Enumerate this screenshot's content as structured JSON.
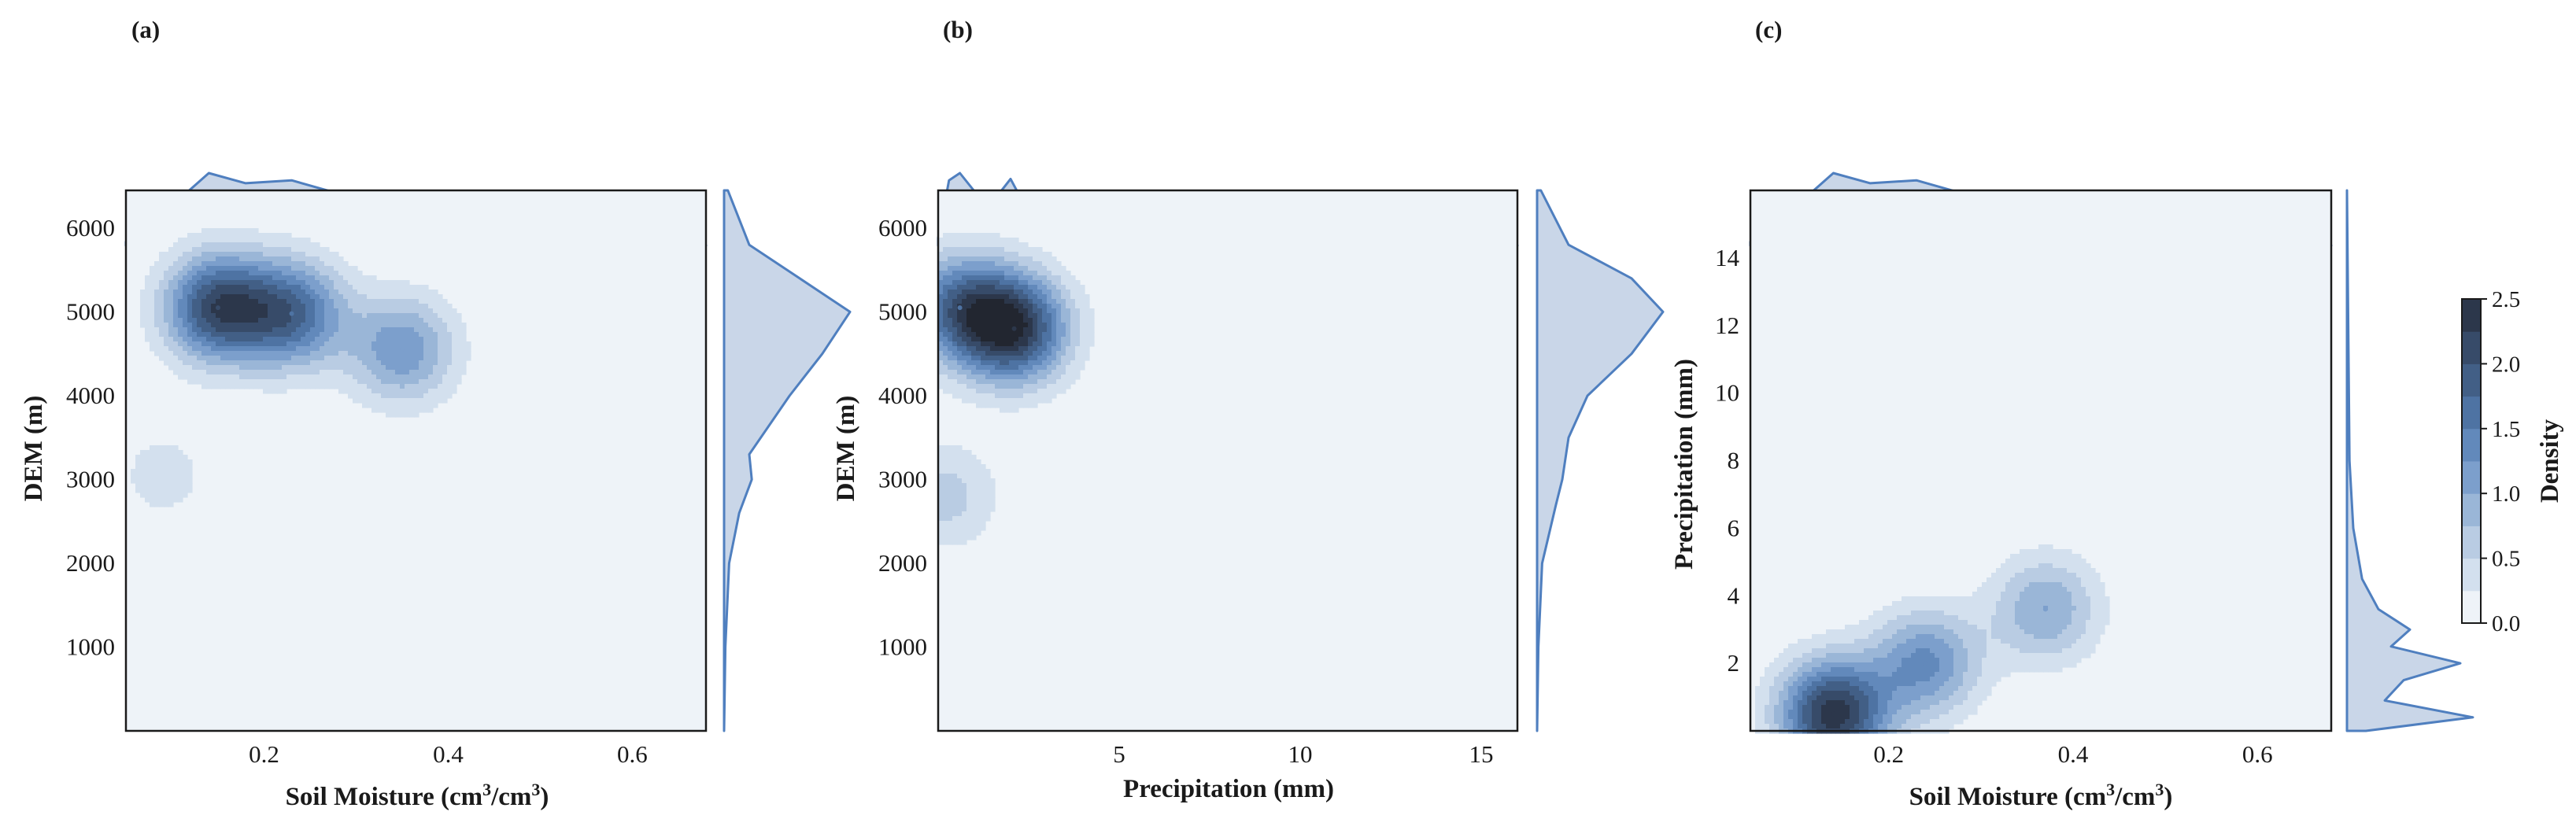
{
  "chart_data": [
    {
      "panel": "(a)",
      "type": "kde-joint",
      "xlabel": "Soil Moisture (cm³/cm³)",
      "ylabel": "DEM (m)",
      "xlim": [
        0.05,
        0.68
      ],
      "ylim": [
        0,
        6450
      ],
      "xticks": [
        0.2,
        0.4,
        0.6
      ],
      "xtick_labels": [
        "0.2",
        "0.4",
        "0.6"
      ],
      "yticks": [
        1000,
        2000,
        3000,
        4000,
        5000,
        6000
      ],
      "ytick_labels": [
        "1000",
        "2000",
        "3000",
        "4000",
        "5000",
        "6000"
      ],
      "density_peaks": [
        {
          "x": 0.15,
          "y": 5050,
          "density": 2.1
        },
        {
          "x": 0.23,
          "y": 4980,
          "density": 1.7
        },
        {
          "x": 0.35,
          "y": 4550,
          "density": 1.2
        },
        {
          "x": 0.09,
          "y": 3050,
          "density": 0.35
        }
      ],
      "top_marginal": {
        "x": [
          0.05,
          0.1,
          0.14,
          0.18,
          0.23,
          0.28,
          0.32,
          0.37,
          0.42,
          0.47,
          0.52,
          0.6,
          0.68
        ],
        "density": [
          0.05,
          0.55,
          1.0,
          0.86,
          0.9,
          0.72,
          0.6,
          0.63,
          0.42,
          0.16,
          0.06,
          0.03,
          0.0
        ]
      },
      "right_marginal": {
        "y": [
          0,
          1000,
          2000,
          2600,
          3000,
          3300,
          4000,
          4500,
          5000,
          5400,
          5800,
          6450
        ],
        "density": [
          0.0,
          0.01,
          0.04,
          0.12,
          0.22,
          0.2,
          0.52,
          0.78,
          1.0,
          0.6,
          0.2,
          0.03
        ]
      }
    },
    {
      "panel": "(b)",
      "type": "kde-joint",
      "xlabel": "Precipitation (mm)",
      "ylabel": "DEM (m)",
      "xlim": [
        0,
        16
      ],
      "ylim": [
        0,
        6450
      ],
      "xticks": [
        5,
        10,
        15
      ],
      "xtick_labels": [
        "5",
        "10",
        "15"
      ],
      "yticks": [
        1000,
        2000,
        3000,
        4000,
        5000,
        6000
      ],
      "ytick_labels": [
        "1000",
        "2000",
        "3000",
        "4000",
        "5000",
        "6000"
      ],
      "density_peaks": [
        {
          "x": 0.6,
          "y": 5050,
          "density": 1.6
        },
        {
          "x": 2.1,
          "y": 4800,
          "density": 2.3
        },
        {
          "x": 0.2,
          "y": 2800,
          "density": 0.6
        }
      ],
      "top_marginal": {
        "x": [
          0,
          0.3,
          0.6,
          1.0,
          1.5,
          2.0,
          2.5,
          3.0,
          3.5,
          4.0,
          5.0,
          6.0,
          8.0,
          12.0,
          16.0
        ],
        "density": [
          0.1,
          0.9,
          1.0,
          0.75,
          0.6,
          0.92,
          0.45,
          0.35,
          0.38,
          0.25,
          0.12,
          0.05,
          0.02,
          0.01,
          0.0
        ]
      },
      "right_marginal": {
        "y": [
          0,
          1000,
          2000,
          2700,
          3000,
          3500,
          4000,
          4500,
          5000,
          5400,
          5800,
          6450
        ],
        "density": [
          0.0,
          0.01,
          0.04,
          0.15,
          0.2,
          0.25,
          0.4,
          0.75,
          1.0,
          0.75,
          0.25,
          0.03
        ]
      }
    },
    {
      "panel": "(c)",
      "type": "kde-joint",
      "xlabel": "Soil Moisture (cm³/cm³)",
      "ylabel": "Precipitation (mm)",
      "xlim": [
        0.05,
        0.68
      ],
      "ylim": [
        0,
        16
      ],
      "xticks": [
        0.2,
        0.4,
        0.6
      ],
      "xtick_labels": [
        "0.2",
        "0.4",
        "0.6"
      ],
      "yticks": [
        2,
        4,
        6,
        8,
        10,
        12,
        14
      ],
      "ytick_labels": [
        "2",
        "4",
        "6",
        "8",
        "10",
        "12",
        "14"
      ],
      "density_peaks": [
        {
          "x": 0.14,
          "y": 0.5,
          "density": 2.4
        },
        {
          "x": 0.24,
          "y": 2.0,
          "density": 1.3
        },
        {
          "x": 0.37,
          "y": 3.6,
          "density": 1.0
        }
      ],
      "top_marginal": {
        "x": [
          0.05,
          0.1,
          0.14,
          0.18,
          0.23,
          0.28,
          0.32,
          0.37,
          0.42,
          0.47,
          0.52,
          0.6,
          0.68
        ],
        "density": [
          0.05,
          0.55,
          1.0,
          0.86,
          0.9,
          0.72,
          0.6,
          0.63,
          0.42,
          0.16,
          0.06,
          0.03,
          0.0
        ]
      },
      "right_marginal": {
        "y": [
          0,
          0.4,
          0.9,
          1.5,
          2.0,
          2.5,
          3.0,
          3.6,
          4.5,
          6.0,
          8.0,
          12.0,
          16.0
        ],
        "density": [
          0.15,
          1.0,
          0.3,
          0.45,
          0.9,
          0.35,
          0.5,
          0.25,
          0.12,
          0.05,
          0.02,
          0.01,
          0.0
        ]
      }
    }
  ],
  "colorbar": {
    "label": "Density",
    "ticks": [
      0.0,
      0.5,
      1.0,
      1.5,
      2.0,
      2.5
    ],
    "tick_labels": [
      "0.0",
      "0.5",
      "1.0",
      "1.5",
      "2.0",
      "2.5"
    ],
    "levels": [
      0.0,
      0.25,
      0.5,
      0.75,
      1.0,
      1.25,
      1.5,
      1.75,
      2.0,
      2.25,
      2.5
    ]
  },
  "colors": {
    "background": "#eef3f8",
    "line": "#4f7fbf",
    "marginal_fill": "#c9d6e8",
    "palette": [
      "#eef3f8",
      "#d3e0ee",
      "#b9cce3",
      "#9ab6d7",
      "#7c9fcc",
      "#6289bb",
      "#4e73a3",
      "#425f86",
      "#374b69",
      "#2c374b",
      "#222630"
    ]
  }
}
